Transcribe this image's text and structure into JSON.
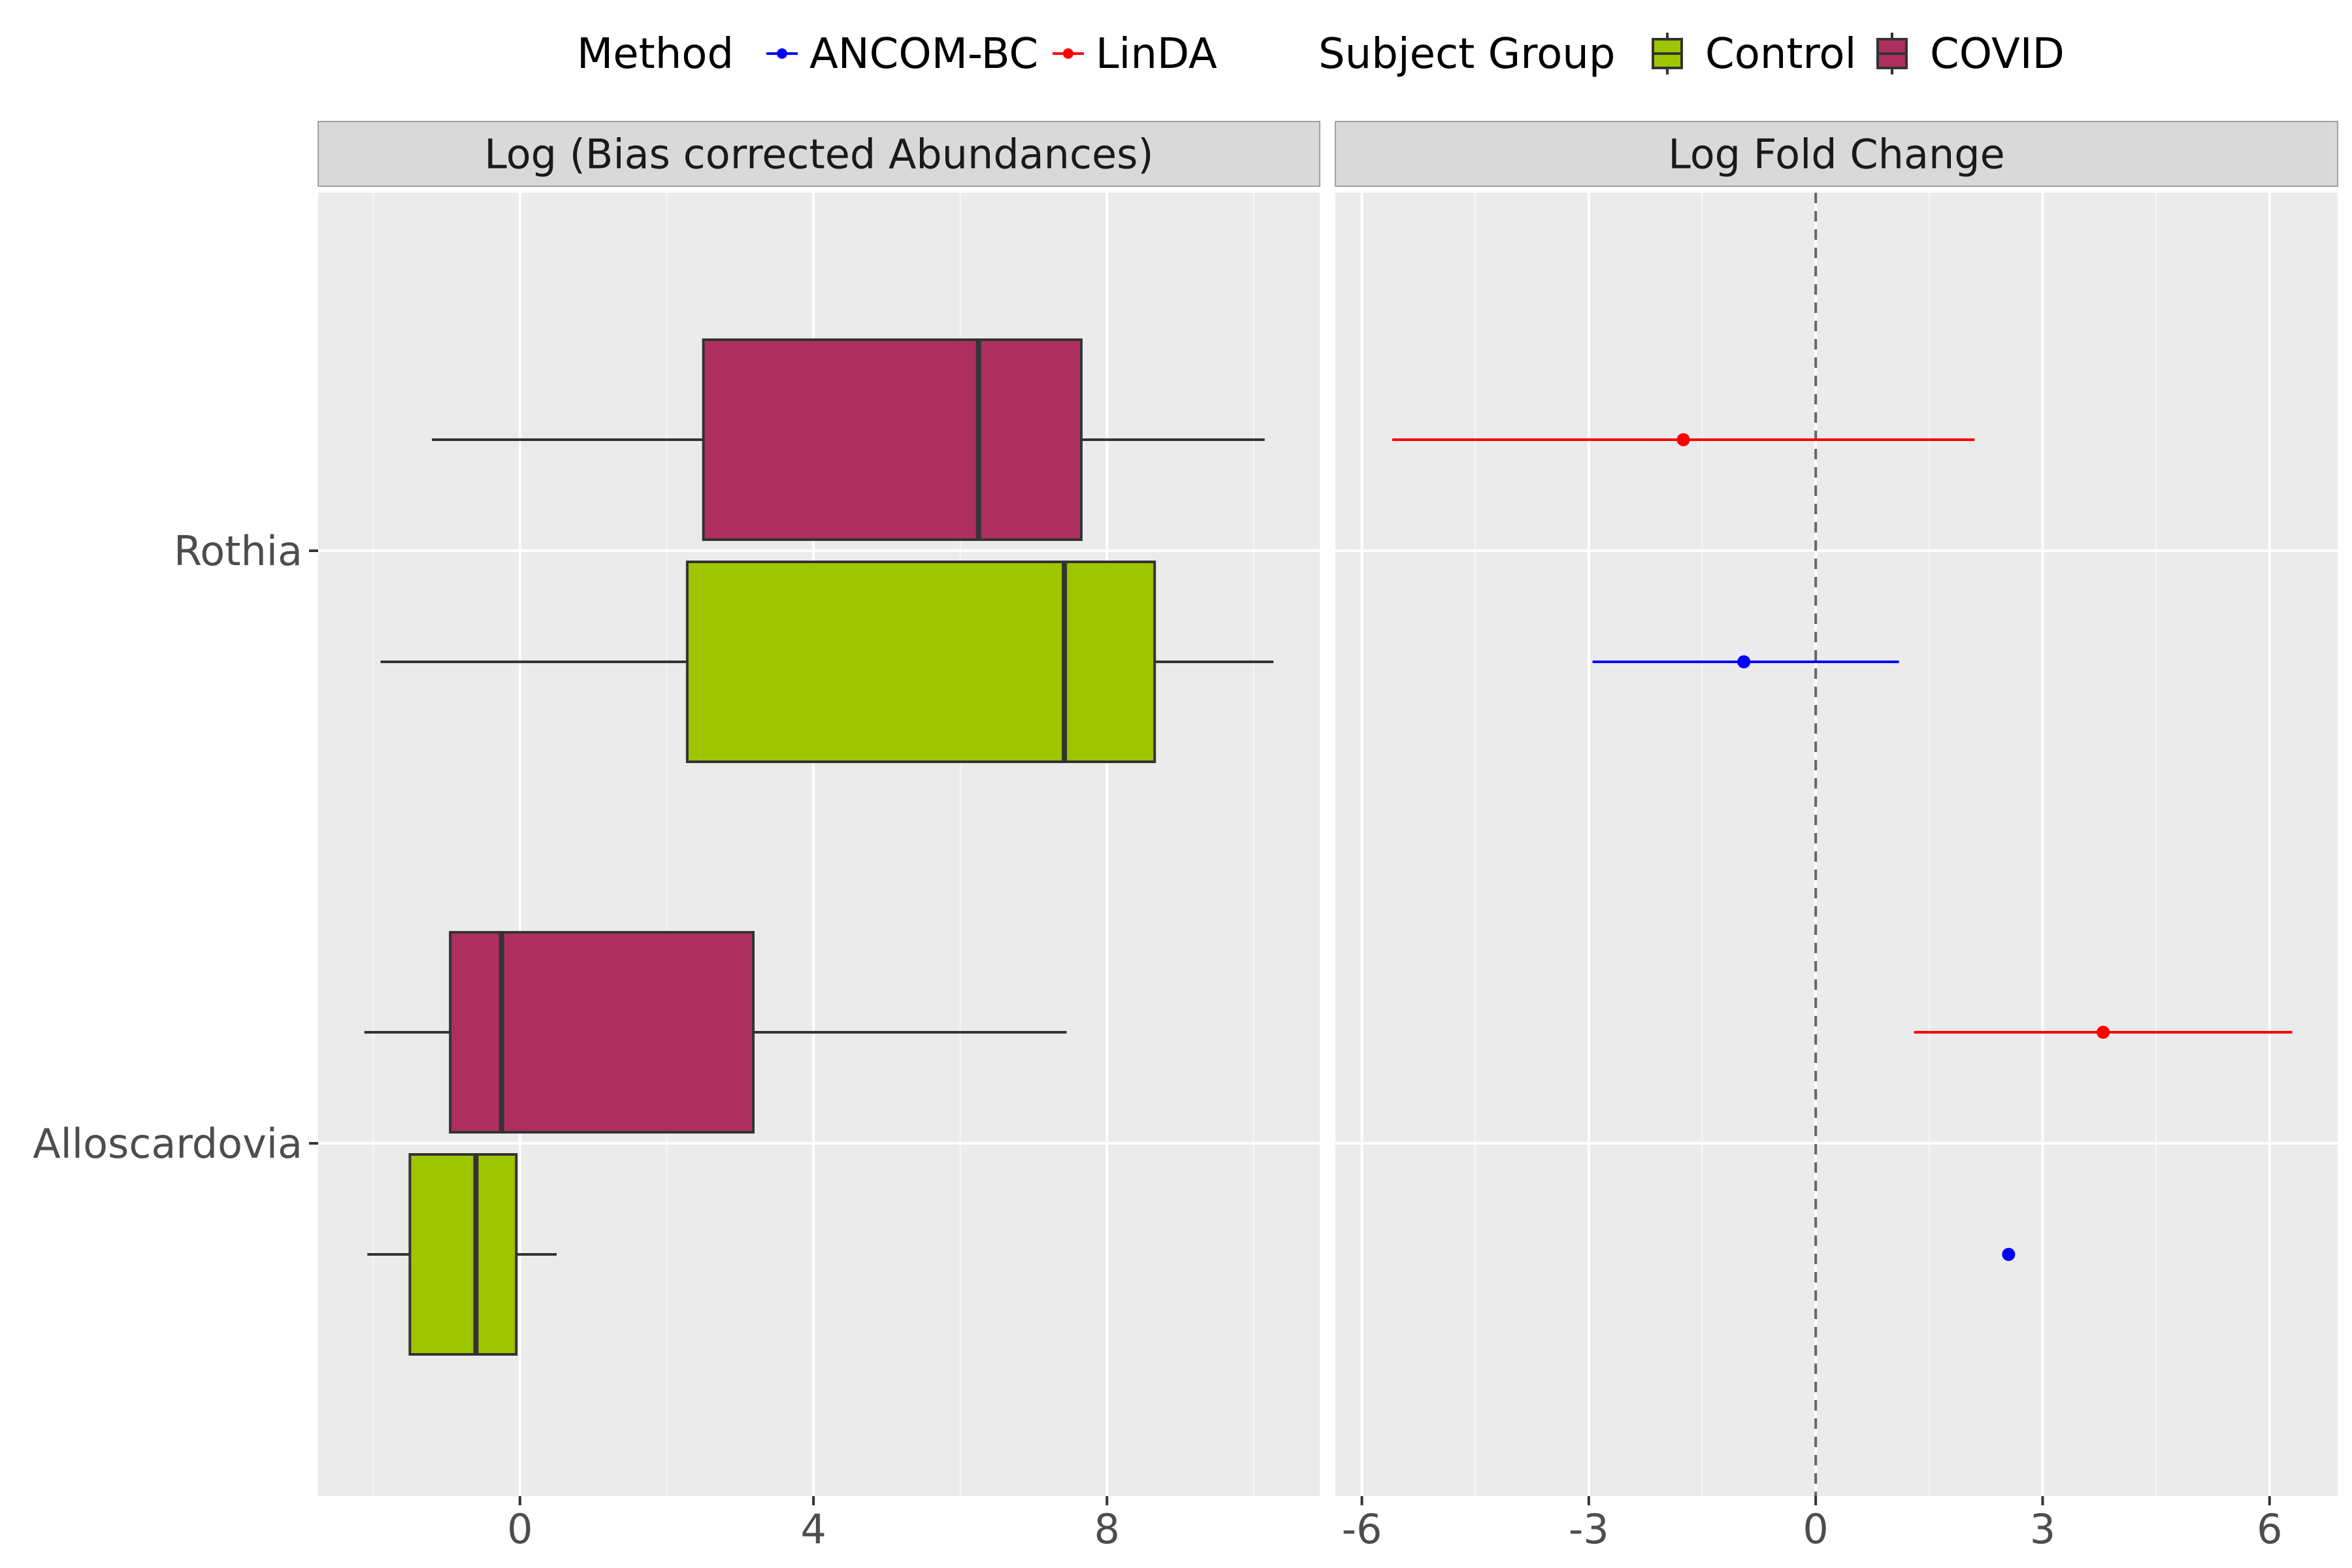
{
  "chart_data": {
    "type": "boxplot+forest",
    "legend": {
      "position": "top",
      "method": {
        "title": "Method",
        "entries": [
          {
            "label": "ANCOM-BC",
            "color": "#0000ff"
          },
          {
            "label": "LinDA",
            "color": "#ff0000"
          }
        ]
      },
      "group": {
        "title": "Subject Group",
        "entries": [
          {
            "label": "Control",
            "color": "#9fc400"
          },
          {
            "label": "COVID",
            "color": "#ae2f5e"
          }
        ]
      }
    },
    "taxa": [
      "Rothia",
      "Alloscardovia"
    ],
    "panels": [
      {
        "title": "Log (Bias corrected Abundances)",
        "xlim": [
          -2.75,
          10.9
        ],
        "ticks": [
          0,
          4,
          8
        ],
        "tick_labels": [
          "0",
          "4",
          "8"
        ],
        "boxes": [
          {
            "taxon": "Rothia",
            "group": "COVID",
            "whisker_low": -1.2,
            "q1": 2.5,
            "median": 6.25,
            "q3": 7.65,
            "whisker_high": 10.15
          },
          {
            "taxon": "Rothia",
            "group": "Control",
            "whisker_low": -1.9,
            "q1": 2.28,
            "median": 7.42,
            "q3": 8.65,
            "whisker_high": 10.27
          },
          {
            "taxon": "Alloscardovia",
            "group": "COVID",
            "whisker_low": -2.12,
            "q1": -0.95,
            "median": -0.25,
            "q3": 3.18,
            "whisker_high": 7.45
          },
          {
            "taxon": "Alloscardovia",
            "group": "Control",
            "whisker_low": -2.08,
            "q1": -1.5,
            "median": -0.6,
            "q3": -0.05,
            "whisker_high": 0.5
          }
        ]
      },
      {
        "title": "Log Fold Change",
        "xlim": [
          -6.35,
          6.9
        ],
        "ticks": [
          -6,
          -3,
          0,
          3,
          6
        ],
        "tick_labels": [
          "-6",
          "-3",
          "0",
          "3",
          "6"
        ],
        "reference_line": 0,
        "estimates": [
          {
            "taxon": "Rothia",
            "method": "LinDA",
            "estimate": -1.75,
            "lower": -5.6,
            "upper": 2.1
          },
          {
            "taxon": "Rothia",
            "method": "ANCOM-BC",
            "estimate": -0.95,
            "lower": -2.95,
            "upper": 1.1
          },
          {
            "taxon": "Alloscardovia",
            "method": "LinDA",
            "estimate": 3.8,
            "lower": 1.3,
            "upper": 6.3
          },
          {
            "taxon": "Alloscardovia",
            "method": "ANCOM-BC",
            "estimate": 2.55,
            "lower": 2.55,
            "upper": 2.55
          }
        ]
      }
    ],
    "grid": true
  }
}
